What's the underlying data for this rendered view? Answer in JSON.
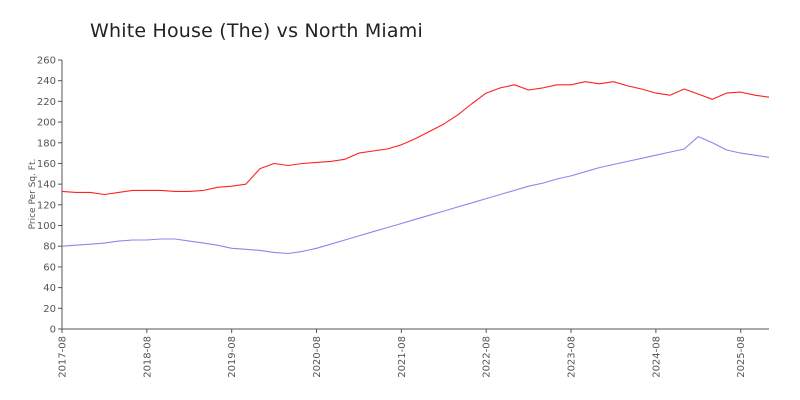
{
  "chart_data": {
    "type": "line",
    "title": "White House (The) vs North Miami",
    "xlabel": "",
    "ylabel": "Price Per Sq. Ft.",
    "ylim": [
      0,
      260
    ],
    "yticks": [
      0,
      20,
      40,
      60,
      80,
      100,
      120,
      140,
      160,
      180,
      200,
      220,
      240,
      260
    ],
    "xlim": [
      "2017-08",
      "2025-12"
    ],
    "xticks": [
      "2017-08",
      "2018-08",
      "2019-08",
      "2020-08",
      "2021-08",
      "2022-08",
      "2023-08",
      "2024-08",
      "2025-08"
    ],
    "grid": false,
    "legend": "none",
    "series": [
      {
        "color": "#ff2020",
        "x": [
          "2017-08",
          "2017-10",
          "2017-12",
          "2018-02",
          "2018-04",
          "2018-06",
          "2018-08",
          "2018-10",
          "2018-12",
          "2019-02",
          "2019-04",
          "2019-06",
          "2019-08",
          "2019-10",
          "2019-12",
          "2020-02",
          "2020-04",
          "2020-06",
          "2020-08",
          "2020-10",
          "2020-12",
          "2021-02",
          "2021-04",
          "2021-06",
          "2021-08",
          "2021-10",
          "2021-12",
          "2022-02",
          "2022-04",
          "2022-06",
          "2022-08",
          "2022-10",
          "2022-12",
          "2023-02",
          "2023-04",
          "2023-06",
          "2023-08",
          "2023-10",
          "2023-12",
          "2024-02",
          "2024-04",
          "2024-06",
          "2024-08",
          "2024-10",
          "2024-12",
          "2025-02",
          "2025-04",
          "2025-06",
          "2025-08",
          "2025-10",
          "2025-12"
        ],
        "values": [
          133,
          132,
          132,
          130,
          132,
          134,
          134,
          134,
          133,
          133,
          134,
          137,
          138,
          140,
          155,
          160,
          158,
          160,
          161,
          162,
          164,
          170,
          172,
          174,
          178,
          184,
          191,
          198,
          207,
          218,
          228,
          233,
          236,
          231,
          233,
          236,
          236,
          239,
          237,
          239,
          235,
          232,
          228,
          226,
          232,
          227,
          222,
          228,
          229,
          226,
          224
        ]
      },
      {
        "color": "#8888ee",
        "x": [
          "2017-08",
          "2017-10",
          "2017-12",
          "2018-02",
          "2018-04",
          "2018-06",
          "2018-08",
          "2018-10",
          "2018-12",
          "2019-02",
          "2019-04",
          "2019-06",
          "2019-08",
          "2019-10",
          "2019-12",
          "2020-02",
          "2020-04",
          "2020-06",
          "2020-08",
          "2020-10",
          "2020-12",
          "2021-02",
          "2021-04",
          "2021-06",
          "2021-08",
          "2021-10",
          "2021-12",
          "2022-02",
          "2022-04",
          "2022-06",
          "2022-08",
          "2022-10",
          "2022-12",
          "2023-02",
          "2023-04",
          "2023-06",
          "2023-08",
          "2023-10",
          "2023-12",
          "2024-02",
          "2024-04",
          "2024-06",
          "2024-08",
          "2024-10",
          "2024-12",
          "2025-02",
          "2025-04",
          "2025-06",
          "2025-08",
          "2025-10",
          "2025-12"
        ],
        "values": [
          80,
          81,
          82,
          83,
          85,
          86,
          86,
          87,
          87,
          85,
          83,
          81,
          78,
          77,
          76,
          74,
          73,
          75,
          78,
          82,
          86,
          90,
          94,
          98,
          102,
          106,
          110,
          114,
          118,
          122,
          126,
          130,
          134,
          138,
          141,
          145,
          148,
          152,
          156,
          159,
          162,
          165,
          168,
          171,
          174,
          186,
          180,
          173,
          170,
          168,
          166
        ]
      }
    ]
  }
}
